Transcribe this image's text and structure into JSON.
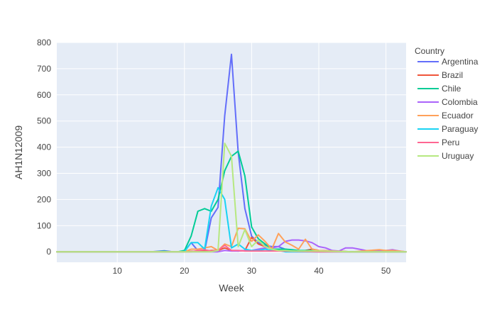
{
  "chart_data": {
    "type": "line",
    "xlabel": "Week",
    "ylabel": "AH1N12009",
    "xlim": [
      1,
      53
    ],
    "ylim": [
      -40,
      800
    ],
    "x_ticks": [
      10,
      20,
      30,
      40,
      50
    ],
    "y_ticks": [
      0,
      100,
      200,
      300,
      400,
      500,
      600,
      700,
      800
    ],
    "grid": true,
    "legend": {
      "title": "Country",
      "position": "right"
    },
    "series": [
      {
        "name": "Argentina",
        "color": "#636efa",
        "x": [
          1,
          5,
          10,
          15,
          16,
          17,
          18,
          19,
          20,
          21,
          22,
          23,
          24,
          25,
          26,
          27,
          28,
          29,
          30,
          31,
          32,
          33,
          34,
          35,
          36,
          37,
          38,
          39,
          40,
          45,
          50,
          53
        ],
        "y": [
          0,
          0,
          0,
          0,
          2,
          4,
          1,
          0,
          2,
          35,
          5,
          3,
          130,
          170,
          520,
          755,
          380,
          165,
          60,
          35,
          25,
          20,
          20,
          10,
          5,
          3,
          3,
          10,
          5,
          0,
          0,
          0
        ]
      },
      {
        "name": "Brazil",
        "color": "#EF553B",
        "x": [
          1,
          10,
          15,
          18,
          19,
          20,
          21,
          22,
          23,
          24,
          25,
          26,
          27,
          28,
          29,
          30,
          31,
          32,
          33,
          34,
          35,
          36,
          37,
          38,
          39,
          40,
          45,
          50,
          53
        ],
        "y": [
          0,
          0,
          0,
          0,
          0,
          0,
          2,
          2,
          2,
          5,
          5,
          15,
          5,
          3,
          5,
          55,
          30,
          20,
          10,
          10,
          8,
          5,
          3,
          5,
          10,
          5,
          0,
          0,
          0
        ]
      },
      {
        "name": "Chile",
        "color": "#00cc96",
        "x": [
          1,
          10,
          15,
          17,
          18,
          19,
          20,
          21,
          22,
          23,
          24,
          25,
          26,
          27,
          28,
          29,
          30,
          31,
          32,
          33,
          34,
          35,
          36,
          37,
          38,
          39,
          40,
          45,
          50,
          53
        ],
        "y": [
          0,
          0,
          0,
          2,
          0,
          0,
          5,
          60,
          155,
          165,
          155,
          200,
          310,
          365,
          385,
          290,
          95,
          50,
          30,
          10,
          10,
          10,
          8,
          5,
          5,
          5,
          2,
          0,
          0,
          0
        ]
      },
      {
        "name": "Colombia",
        "color": "#ab63fa",
        "x": [
          1,
          10,
          20,
          25,
          26,
          27,
          28,
          29,
          30,
          31,
          32,
          33,
          34,
          35,
          36,
          37,
          38,
          39,
          40,
          41,
          42,
          43,
          44,
          45,
          46,
          47,
          48,
          49,
          50,
          51,
          52,
          53
        ],
        "y": [
          0,
          0,
          0,
          0,
          5,
          3,
          3,
          5,
          5,
          10,
          15,
          15,
          20,
          40,
          45,
          45,
          42,
          35,
          20,
          15,
          5,
          3,
          15,
          15,
          10,
          5,
          3,
          5,
          5,
          8,
          3,
          0
        ]
      },
      {
        "name": "Ecuador",
        "color": "#FFA15A",
        "x": [
          1,
          10,
          20,
          21,
          22,
          23,
          24,
          25,
          26,
          27,
          28,
          29,
          30,
          31,
          32,
          33,
          34,
          35,
          36,
          37,
          38,
          39,
          40,
          45,
          49,
          50,
          51,
          52,
          53
        ],
        "y": [
          0,
          0,
          0,
          10,
          10,
          15,
          20,
          5,
          30,
          20,
          90,
          88,
          40,
          65,
          40,
          10,
          70,
          38,
          25,
          10,
          48,
          10,
          5,
          0,
          8,
          5,
          5,
          3,
          0
        ]
      },
      {
        "name": "Paraguay",
        "color": "#19d3f3",
        "x": [
          1,
          10,
          15,
          20,
          21,
          22,
          23,
          24,
          25,
          26,
          27,
          28,
          29,
          30,
          31,
          32,
          33,
          34,
          35,
          40,
          45,
          50,
          53
        ],
        "y": [
          0,
          0,
          0,
          0,
          35,
          35,
          10,
          175,
          245,
          200,
          15,
          30,
          10,
          5,
          5,
          10,
          5,
          5,
          0,
          0,
          0,
          0,
          0
        ]
      },
      {
        "name": "Peru",
        "color": "#FF6692",
        "x": [
          1,
          10,
          20,
          21,
          22,
          23,
          24,
          25,
          26,
          27,
          28,
          29,
          30,
          31,
          32,
          33,
          34,
          35,
          40,
          45,
          50,
          53
        ],
        "y": [
          0,
          0,
          0,
          0,
          5,
          8,
          3,
          5,
          25,
          5,
          5,
          3,
          3,
          3,
          3,
          3,
          3,
          3,
          0,
          0,
          0,
          0
        ]
      },
      {
        "name": "Uruguay",
        "color": "#B6E880",
        "x": [
          1,
          10,
          20,
          24,
          25,
          26,
          27,
          28,
          29,
          30,
          31,
          32,
          33,
          34,
          35,
          36,
          37,
          38,
          39,
          40,
          45,
          50,
          53
        ],
        "y": [
          0,
          0,
          0,
          0,
          5,
          415,
          365,
          20,
          85,
          20,
          45,
          20,
          10,
          5,
          5,
          3,
          3,
          3,
          3,
          3,
          0,
          0,
          0
        ]
      }
    ]
  }
}
